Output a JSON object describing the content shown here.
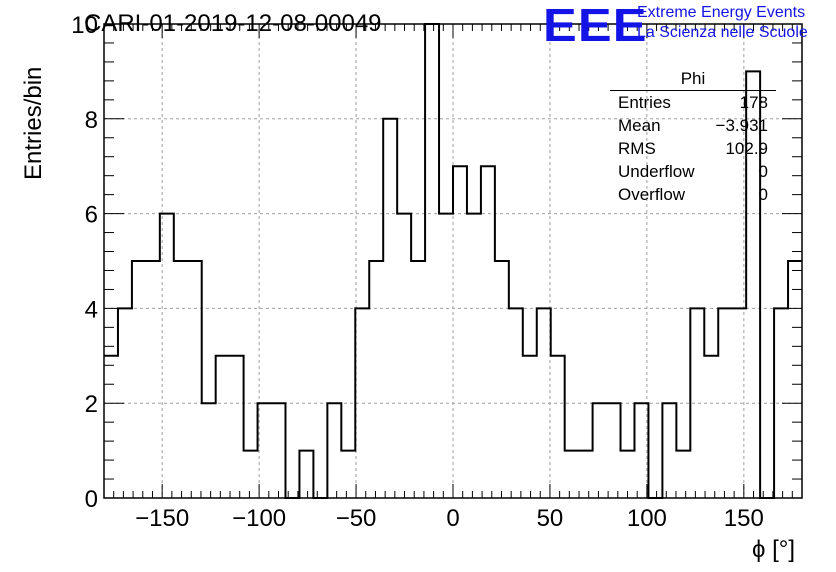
{
  "header": {
    "run_title": "CARI-01-2019-12-08-00049",
    "logo_mark": "EEE",
    "logo_line1": "Extreme Energy Events",
    "logo_line2": "La Scienza nelle Scuole"
  },
  "stats_box": {
    "title": "Phi",
    "rows": [
      {
        "label": "Entries",
        "value": "178"
      },
      {
        "label": "Mean",
        "value": "−3.931"
      },
      {
        "label": "RMS",
        "value": "102.9"
      },
      {
        "label": "Underflow",
        "value": "0"
      },
      {
        "label": "Overflow",
        "value": "0"
      }
    ]
  },
  "colors": {
    "line": "#000000",
    "grid": "#a0a0a0",
    "logo": "#1414e6"
  },
  "chart_data": {
    "type": "bar",
    "style": "step-histogram",
    "title": "CARI-01-2019-12-08-00049",
    "xlabel": "ϕ [°]",
    "ylabel": "Entries/bin",
    "xlim": [
      -180,
      180
    ],
    "ylim": [
      0,
      10
    ],
    "grid": true,
    "bin_width": 7.2,
    "x_ticks": [
      -150,
      -100,
      -50,
      0,
      50,
      100,
      150
    ],
    "x_tick_labels": [
      "−150",
      "−100",
      "−50",
      "0",
      "50",
      "100",
      "150"
    ],
    "y_ticks": [
      0,
      2,
      4,
      6,
      8,
      10
    ],
    "y_tick_labels": [
      "0",
      "2",
      "4",
      "6",
      "8",
      "10"
    ],
    "values": [
      3,
      4,
      5,
      5,
      6,
      5,
      5,
      2,
      3,
      3,
      1,
      2,
      2,
      0,
      1,
      0,
      2,
      1,
      4,
      5,
      8,
      6,
      5,
      10,
      6,
      7,
      6,
      7,
      5,
      4,
      3,
      4,
      3,
      1,
      1,
      2,
      2,
      1,
      2,
      0,
      2,
      1,
      4,
      3,
      4,
      4,
      9,
      0,
      4,
      5
    ]
  }
}
